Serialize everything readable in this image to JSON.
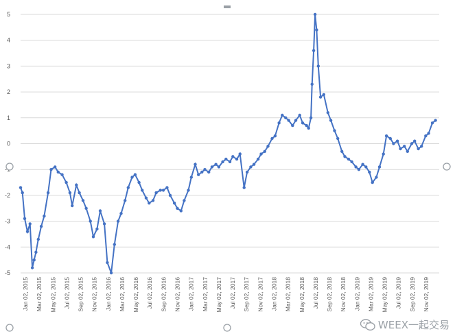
{
  "chart_data": {
    "type": "line",
    "title": "",
    "xlabel": "",
    "ylabel": "",
    "ylim": [
      -5,
      5
    ],
    "y_ticks": [
      "5",
      "4",
      "3",
      "2",
      "1",
      "0",
      "-1",
      "-2",
      "-3",
      "-4",
      "-5"
    ],
    "x_ticks": [
      "Jan 02, 2015",
      "Mar 02, 2015",
      "May 02, 2015",
      "Jul 02, 2015",
      "Sep 02, 2015",
      "Nov 02, 2015",
      "Jan 02, 2016",
      "Mar 02, 2016",
      "May 02, 2016",
      "Jul 02, 2016",
      "Sep 02, 2016",
      "Nov 02, 2016",
      "Jan 02, 2017",
      "Mar 02, 2017",
      "May 02, 2017",
      "Jul 02, 2017",
      "Sep 02, 2017",
      "Nov 02, 2017",
      "Jan 02, 2018",
      "Mar 02, 2018",
      "May 02, 2018",
      "Jul 02, 2018",
      "Sep 02, 2018",
      "Nov 02, 2018",
      "Jan 02, 2019",
      "Mar 02, 2019",
      "May 02, 2019",
      "Jul 02, 2019",
      "Sep 02, 2019",
      "Nov 02, 2019"
    ],
    "grid": true,
    "series_color": "#4472c4",
    "series": [
      {
        "x": [
          "2015-01-02",
          "2015-01-10",
          "2015-01-20",
          "2015-02-01",
          "2015-02-12",
          "2015-02-22",
          "2015-03-02",
          "2015-03-10",
          "2015-03-20",
          "2015-04-02",
          "2015-04-15",
          "2015-05-02",
          "2015-05-15",
          "2015-06-01",
          "2015-06-15",
          "2015-07-02",
          "2015-07-20",
          "2015-08-05",
          "2015-08-15",
          "2015-09-02",
          "2015-09-15",
          "2015-10-01",
          "2015-10-15",
          "2015-11-02",
          "2015-11-15",
          "2015-12-01",
          "2015-12-15",
          "2016-01-02",
          "2016-01-15",
          "2016-02-01",
          "2016-02-15",
          "2016-03-02",
          "2016-03-15",
          "2016-04-01",
          "2016-04-15",
          "2016-05-02",
          "2016-05-15",
          "2016-06-01",
          "2016-06-15",
          "2016-07-02",
          "2016-07-15",
          "2016-08-01",
          "2016-08-15",
          "2016-09-02",
          "2016-09-15",
          "2016-10-01",
          "2016-10-15",
          "2016-11-02",
          "2016-11-15",
          "2016-12-01",
          "2016-12-15",
          "2017-01-02",
          "2017-01-15",
          "2017-02-01",
          "2017-02-15",
          "2017-03-02",
          "2017-03-15",
          "2017-04-01",
          "2017-04-15",
          "2017-05-02",
          "2017-05-15",
          "2017-06-01",
          "2017-06-15",
          "2017-07-02",
          "2017-07-15",
          "2017-08-01",
          "2017-08-15",
          "2017-09-02",
          "2017-09-15",
          "2017-10-01",
          "2017-10-15",
          "2017-11-02",
          "2017-11-15",
          "2017-12-01",
          "2017-12-15",
          "2018-01-02",
          "2018-01-15",
          "2018-02-01",
          "2018-02-15",
          "2018-03-02",
          "2018-03-15",
          "2018-04-01",
          "2018-04-15",
          "2018-05-02",
          "2018-05-15",
          "2018-06-01",
          "2018-06-10",
          "2018-06-20",
          "2018-06-25",
          "2018-07-02",
          "2018-07-08",
          "2018-07-15",
          "2018-07-22",
          "2018-08-01",
          "2018-08-15",
          "2018-09-02",
          "2018-09-15",
          "2018-10-01",
          "2018-10-15",
          "2018-11-02",
          "2018-11-15",
          "2018-12-01",
          "2018-12-15",
          "2019-01-02",
          "2019-01-15",
          "2019-02-01",
          "2019-02-15",
          "2019-03-02",
          "2019-03-15",
          "2019-04-01",
          "2019-04-15",
          "2019-05-02",
          "2019-05-15",
          "2019-06-01",
          "2019-06-15",
          "2019-07-02",
          "2019-07-15",
          "2019-08-01",
          "2019-08-15",
          "2019-09-02",
          "2019-09-15",
          "2019-10-01",
          "2019-10-15",
          "2019-11-02",
          "2019-11-15",
          "2019-12-01",
          "2019-12-15"
        ],
        "y": [
          -1.7,
          -1.9,
          -2.9,
          -3.4,
          -3.1,
          -4.8,
          -4.5,
          -4.2,
          -3.7,
          -3.2,
          -2.8,
          -1.9,
          -1.0,
          -0.9,
          -1.1,
          -1.2,
          -1.5,
          -1.9,
          -2.4,
          -1.6,
          -1.9,
          -2.2,
          -2.5,
          -3.0,
          -3.6,
          -3.3,
          -2.6,
          -3.1,
          -4.6,
          -5.0,
          -3.9,
          -3.0,
          -2.7,
          -2.2,
          -1.7,
          -1.3,
          -1.2,
          -1.5,
          -1.8,
          -2.1,
          -2.3,
          -2.2,
          -1.9,
          -1.8,
          -1.8,
          -1.7,
          -2.0,
          -2.3,
          -2.5,
          -2.6,
          -2.2,
          -1.8,
          -1.3,
          -0.8,
          -1.2,
          -1.1,
          -1.0,
          -1.1,
          -0.9,
          -0.8,
          -0.9,
          -0.7,
          -0.6,
          -0.7,
          -0.5,
          -0.6,
          -0.4,
          -1.7,
          -1.1,
          -0.9,
          -0.8,
          -0.6,
          -0.4,
          -0.3,
          -0.1,
          0.2,
          0.3,
          0.8,
          1.1,
          1.0,
          0.9,
          0.7,
          0.9,
          1.1,
          0.8,
          0.7,
          0.6,
          1.0,
          2.3,
          3.6,
          5.0,
          4.4,
          3.0,
          1.8,
          1.9,
          1.2,
          0.9,
          0.5,
          0.2,
          -0.3,
          -0.5,
          -0.6,
          -0.7,
          -0.9,
          -1.0,
          -0.8,
          -0.9,
          -1.1,
          -1.5,
          -1.3,
          -0.9,
          -0.4,
          0.3,
          0.2,
          0.0,
          0.1,
          -0.2,
          -0.1,
          -0.3,
          0.0,
          0.1,
          -0.2,
          -0.1,
          0.3,
          0.4,
          0.8,
          0.9
        ]
      }
    ]
  },
  "watermark": {
    "text": "WEEX一起交易",
    "icon": "wechat-icon"
  }
}
